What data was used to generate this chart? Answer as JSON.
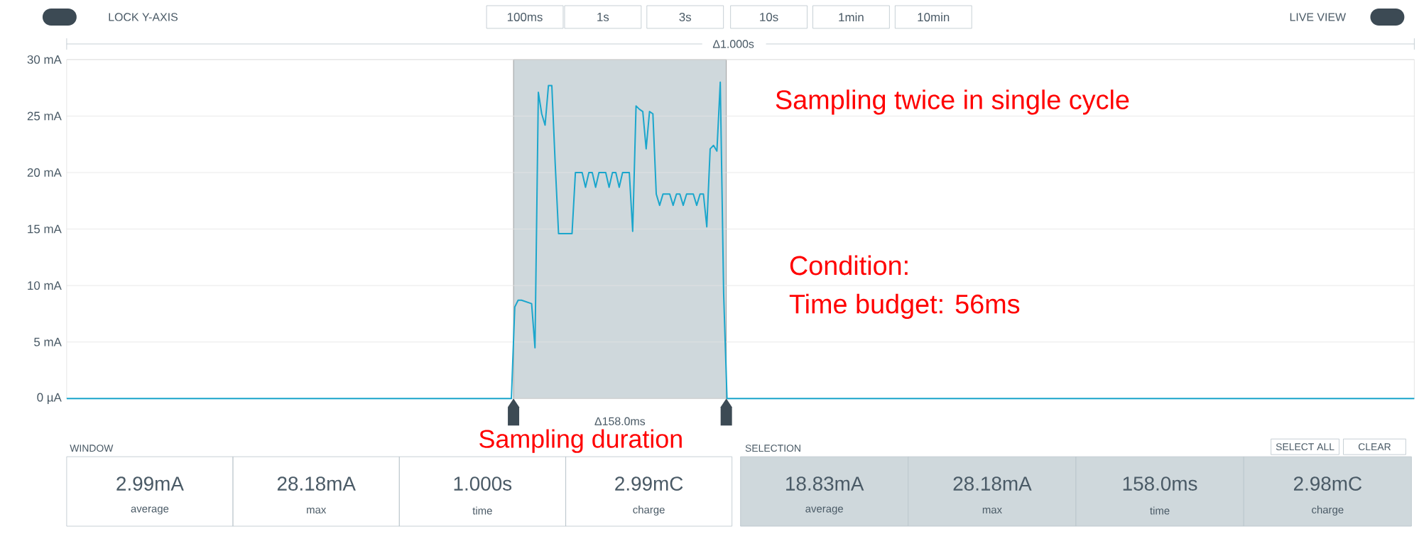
{
  "chart_data": {
    "type": "line",
    "color": "#1ba6cc",
    "grid": "y",
    "tick_labels": "y",
    "marker": "none",
    "ylim": [
      0,
      30
    ],
    "yticks": [
      {
        "value": 0,
        "label": "0 µA"
      },
      {
        "value": 5,
        "label": "5 mA"
      },
      {
        "value": 10,
        "label": "10 mA"
      },
      {
        "value": 15,
        "label": "15 mA"
      },
      {
        "value": 20,
        "label": "20 mA"
      },
      {
        "value": 25,
        "label": "25 mA"
      },
      {
        "value": 30,
        "label": "30 mA"
      }
    ],
    "categories": [
      null,
      null,
      null,
      null,
      null,
      null,
      null,
      null,
      null,
      null,
      null,
      null,
      null,
      null,
      null,
      null,
      null,
      null,
      null,
      null,
      null,
      null,
      null,
      null,
      null,
      null,
      null,
      null,
      null,
      null,
      null,
      null,
      null,
      null,
      null,
      null,
      null,
      null,
      null,
      null,
      null,
      null,
      null,
      null,
      null,
      null,
      null,
      null,
      null,
      null,
      null,
      null,
      null,
      null,
      null,
      null,
      null,
      null,
      null,
      null,
      null,
      null,
      null,
      null,
      null,
      null,
      null,
      null,
      null,
      null,
      null,
      null,
      null,
      null,
      null,
      null,
      null,
      null,
      null,
      null,
      null,
      null,
      null,
      null,
      null,
      null,
      null,
      null,
      null,
      null,
      null,
      null,
      null,
      null,
      null,
      null,
      null,
      null,
      null,
      null,
      null,
      null,
      null,
      null,
      null,
      null,
      null,
      null,
      null,
      null,
      null,
      null,
      null,
      null,
      null,
      null,
      null,
      null,
      null,
      null,
      null,
      null,
      null,
      null,
      null,
      null,
      null,
      null,
      null,
      null,
      null,
      null,
      null,
      null,
      null,
      null,
      null,
      null,
      null,
      null,
      null,
      null,
      null,
      null,
      null,
      null,
      null,
      null,
      null,
      null,
      null,
      null,
      null,
      null,
      null,
      null,
      null,
      null,
      null,
      null,
      null,
      null,
      null,
      null,
      null,
      null,
      null,
      null,
      null,
      null,
      null,
      null,
      null,
      null,
      null,
      null,
      null,
      null,
      null,
      null,
      null,
      null,
      null,
      null,
      null,
      null,
      null,
      null,
      null,
      null,
      null,
      null,
      null,
      null,
      null,
      null,
      null,
      null,
      null,
      null,
      null,
      null,
      null,
      null,
      null,
      null,
      null,
      null,
      null,
      null,
      null,
      null,
      null,
      null,
      null,
      null,
      null,
      null,
      null,
      null,
      null,
      null,
      null,
      null,
      null,
      null,
      null,
      null,
      null,
      null,
      null,
      null,
      null,
      null,
      null,
      null,
      null,
      null,
      null,
      null,
      null,
      null,
      null,
      null,
      null,
      null,
      null,
      null,
      null,
      null,
      null,
      null,
      null,
      null,
      null,
      null,
      null,
      null,
      null,
      null,
      null,
      null,
      null,
      null,
      null,
      null,
      null,
      null,
      null,
      null,
      null,
      null,
      null,
      null,
      null,
      null,
      null,
      null,
      null,
      null,
      null,
      null,
      null,
      null,
      null,
      null,
      null,
      null,
      null,
      null,
      null,
      null,
      null,
      null,
      null,
      null,
      null,
      null,
      null,
      null,
      null,
      null,
      null,
      null,
      null,
      null,
      null,
      null,
      null,
      null,
      null,
      null,
      null,
      null,
      null,
      null,
      null,
      null,
      null,
      null,
      null,
      null,
      null,
      null,
      null,
      null,
      null,
      null,
      null,
      null,
      null,
      null,
      null,
      null,
      null,
      null,
      null,
      null,
      null,
      null,
      null,
      null,
      null,
      null,
      null,
      null,
      null,
      null,
      null,
      null,
      null,
      null,
      null,
      null,
      null,
      null,
      null,
      null,
      null,
      null,
      null,
      null,
      null,
      null,
      null,
      null,
      null,
      null,
      null,
      null,
      null,
      null,
      null,
      null,
      null,
      null,
      null,
      null,
      null,
      null,
      null,
      null,
      null,
      null,
      null,
      null,
      null,
      null,
      null,
      null,
      null,
      null,
      null,
      null,
      null,
      null,
      null,
      null,
      null,
      null,
      null
    ],
    "values": [
      0,
      0,
      0,
      0,
      0,
      0,
      0,
      0,
      0,
      0,
      0,
      0,
      0,
      0,
      0,
      0,
      0,
      0,
      0,
      0,
      0,
      0,
      0,
      0,
      0,
      0,
      0,
      0,
      0,
      0,
      0,
      0,
      0,
      0,
      0,
      0,
      0,
      0,
      0,
      0,
      0,
      0,
      0,
      0,
      0,
      0,
      0,
      0,
      0,
      0,
      0,
      0,
      0,
      0,
      0,
      0,
      0,
      0,
      0,
      0,
      0,
      0,
      0,
      0,
      0,
      0,
      0,
      0,
      0,
      0,
      0,
      0,
      0,
      0,
      0,
      0,
      0,
      0,
      0,
      0,
      0,
      0,
      0,
      0,
      0,
      0,
      0,
      0,
      0,
      0,
      0,
      0,
      0,
      0,
      0,
      0,
      0,
      0,
      0,
      0,
      0,
      0,
      0,
      0,
      0,
      0,
      0,
      0,
      0,
      0,
      0,
      0,
      0,
      0,
      0,
      0,
      0,
      0,
      0,
      0,
      0,
      0,
      0,
      0,
      0,
      0,
      0,
      0,
      0,
      0,
      0,
      0,
      0,
      8.1,
      8.7,
      8.7,
      8.6,
      8.5,
      8.4,
      4.5,
      27.1,
      25.2,
      24.2,
      27.7,
      27.7,
      20.8,
      14.6,
      14.6,
      14.6,
      14.6,
      14.6,
      20.0,
      20.0,
      20.0,
      18.7,
      20.0,
      20.0,
      18.7,
      20.0,
      20.0,
      20.0,
      18.7,
      20.0,
      20.0,
      18.7,
      20.0,
      20.0,
      20.0,
      14.8,
      25.9,
      25.6,
      25.4,
      22.1,
      25.4,
      25.2,
      18.1,
      17.1,
      18.1,
      18.1,
      18.1,
      17.1,
      18.1,
      18.1,
      17.1,
      18.1,
      18.1,
      18.1,
      17.1,
      18.1,
      18.1,
      15.2,
      22.1,
      22.4,
      21.9,
      28.0,
      9.3,
      0,
      0,
      0,
      0,
      0,
      0,
      0,
      0,
      0,
      0,
      0,
      0,
      0,
      0,
      0,
      0,
      0,
      0,
      0,
      0,
      0,
      0,
      0,
      0,
      0,
      0,
      0,
      0,
      0,
      0,
      0,
      0,
      0,
      0,
      0,
      0,
      0,
      0,
      0,
      0,
      0,
      0,
      0,
      0,
      0,
      0,
      0,
      0,
      0,
      0,
      0,
      0,
      0,
      0,
      0,
      0,
      0,
      0,
      0,
      0,
      0,
      0,
      0,
      0,
      0,
      0,
      0,
      0,
      0,
      0,
      0,
      0,
      0,
      0,
      0,
      0,
      0,
      0,
      0,
      0,
      0,
      0,
      0,
      0,
      0,
      0,
      0,
      0,
      0,
      0,
      0,
      0,
      0,
      0,
      0,
      0,
      0,
      0,
      0,
      0,
      0,
      0,
      0,
      0,
      0,
      0,
      0,
      0,
      0,
      0,
      0,
      0,
      0,
      0,
      0,
      0,
      0,
      0,
      0,
      0,
      0,
      0,
      0,
      0,
      0,
      0,
      0,
      0,
      0,
      0,
      0,
      0,
      0,
      0,
      0,
      0,
      0,
      0,
      0,
      0,
      0,
      0,
      0,
      0,
      0,
      0,
      0,
      0,
      0,
      0,
      0,
      0,
      0,
      0,
      0,
      0,
      0,
      0,
      0,
      0,
      0,
      0,
      0,
      0,
      0,
      0,
      0,
      0,
      0,
      0,
      0,
      0,
      0,
      0,
      0,
      0,
      0,
      0,
      0,
      0,
      0,
      0,
      0,
      0,
      0,
      0,
      0,
      0,
      0,
      0,
      0,
      0,
      0,
      0,
      0,
      0,
      0,
      0,
      0,
      0,
      0,
      0,
      0,
      0,
      0
    ],
    "annotations": [
      "LOCK Y-AXIS",
      "100ms",
      "1s",
      "3s",
      "10s",
      "1min",
      "10min",
      "LIVE VIEW",
      "Δ1.000s",
      "Δ158.0ms",
      "Sampling twice in single cycle",
      "Condition:",
      "Time budget: 56ms",
      "Sampling duration",
      "WINDOW",
      "SELECTION",
      "SELECT ALL",
      "CLEAR",
      "2.99mA",
      "28.18mA",
      "1.000s",
      "2.99mC",
      "18.83mA",
      "28.18mA",
      "158.0ms",
      "2.98mC",
      "average",
      "max",
      "time",
      "charge",
      "average",
      "max",
      "time",
      "charge"
    ]
  }
}
